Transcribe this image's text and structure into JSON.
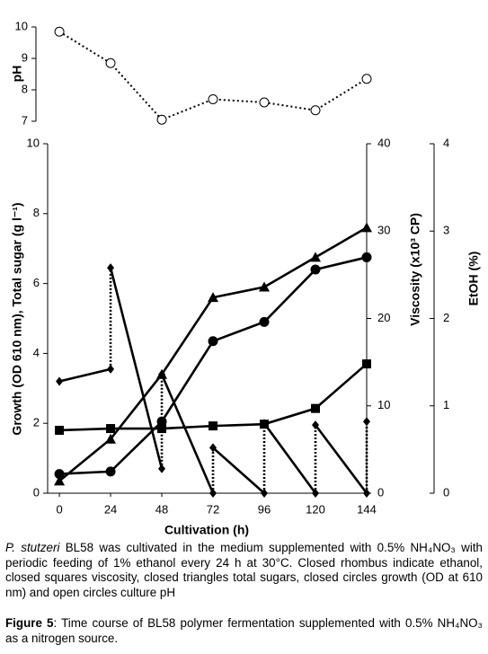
{
  "chart_data": [
    {
      "type": "line",
      "ylabel": "pH",
      "x": [
        0,
        24,
        48,
        72,
        96,
        120,
        144
      ],
      "xlim": [
        -5.5,
        144
      ],
      "ylim": [
        7,
        10
      ],
      "yticks": [
        7,
        8,
        9,
        10
      ],
      "series": [
        {
          "color": "#000000",
          "marker": "open-circle",
          "linestyle": "dotted",
          "values": [
            9.85,
            8.85,
            7.05,
            7.7,
            7.6,
            7.35,
            8.35
          ]
        }
      ]
    },
    {
      "type": "line",
      "xlabel": "Cultivation (h)",
      "ylabel": "Growth (OD 610 nm), Total sugar (g l⁻¹)",
      "y2label": "Viscosity (x10³ CP)",
      "y3label": "EtOH (%)",
      "x": [
        0,
        24,
        48,
        72,
        96,
        120,
        144
      ],
      "xlim": [
        -5.5,
        144
      ],
      "xticks": [
        0,
        24,
        48,
        72,
        96,
        120,
        144
      ],
      "ylim": [
        0,
        10
      ],
      "yticks": [
        0,
        2,
        4,
        6,
        8,
        10
      ],
      "y2lim": [
        0,
        40
      ],
      "y2ticks": [
        0,
        10,
        20,
        30,
        40
      ],
      "y3lim": [
        0,
        4
      ],
      "y3ticks": [
        0,
        1,
        2,
        3,
        4
      ],
      "series": [
        {
          "color": "#000000",
          "marker": "circle",
          "values": [
            0.55,
            0.62,
            2.05,
            4.35,
            4.9,
            6.4,
            6.75
          ]
        },
        {
          "color": "#000000",
          "marker": "triangle",
          "values": [
            0.35,
            1.55,
            3.4,
            5.6,
            5.9,
            6.75,
            7.6
          ]
        },
        {
          "color": "#000000",
          "marker": "square",
          "axis": "y2",
          "values": [
            7.2,
            7.4,
            7.4,
            7.7,
            7.9,
            9.7,
            14.8
          ]
        },
        {
          "color": "#000000",
          "marker": "diamond",
          "axis": "y3",
          "values": [
            1.28,
            1.42,
            0.28,
            0,
            0,
            0,
            0
          ],
          "fed_values": [
            null,
            2.58,
            1.36,
            0.52,
            0.8,
            0.78,
            0.82
          ]
        }
      ]
    }
  ],
  "caption": {
    "species": "P. stutzeri",
    "text": " BL58 was cultivated in the medium supplemented with 0.5% NH₄NO₃ with periodic feeding of 1% ethanol every 24 h at 30°C. Closed rhombus indicate ethanol, closed squares viscosity, closed triangles total sugars, closed circles growth (OD at 610 nm) and open circles culture pH",
    "figure_label": "Figure 5",
    "figure_text": ": Time course of BL58 polymer fermentation supplemented with 0.5% NH₄NO₃ as a nitrogen source."
  }
}
